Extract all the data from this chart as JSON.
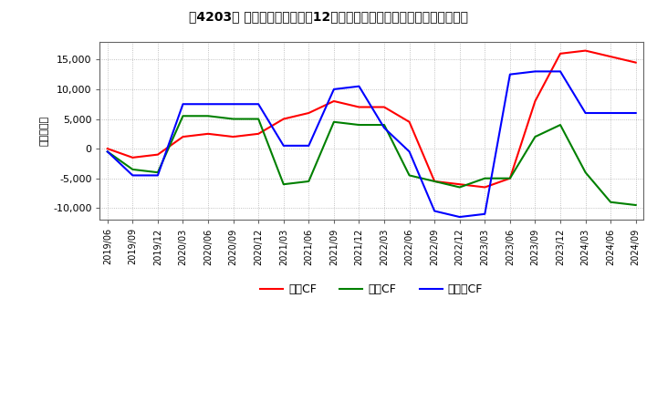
{
  "title": "[䈃] キャッシュフローの12か月移動合計の対前年同期増減額の推移",
  "title2": "［4203］ キャッシュフローの12か月移動合計の対前年同期増減額の推移",
  "ylabel": "（百万円）",
  "ylim": [
    -12000,
    18000
  ],
  "yticks": [
    -10000,
    -5000,
    0,
    5000,
    10000,
    15000
  ],
  "dates": [
    "2019/06",
    "2019/09",
    "2019/12",
    "2020/03",
    "2020/06",
    "2020/09",
    "2020/12",
    "2021/03",
    "2021/06",
    "2021/09",
    "2021/12",
    "2022/03",
    "2022/06",
    "2022/09",
    "2022/12",
    "2023/03",
    "2023/06",
    "2023/09",
    "2023/12",
    "2024/03",
    "2024/06",
    "2024/09"
  ],
  "operating_cf": [
    0,
    -1500,
    -1000,
    2000,
    2500,
    2000,
    2500,
    5000,
    6000,
    8000,
    7000,
    7000,
    4500,
    -5500,
    -6000,
    -6500,
    -5000,
    8000,
    16000,
    16500,
    15500,
    14500
  ],
  "investing_cf": [
    -500,
    -3500,
    -4000,
    5500,
    5500,
    5000,
    5000,
    -6000,
    -5500,
    4500,
    4000,
    4000,
    -4500,
    -5500,
    -6500,
    -5000,
    -5000,
    2000,
    4000,
    -4000,
    -9000,
    -9500
  ],
  "free_cf": [
    -500,
    -4500,
    -4500,
    7500,
    7500,
    7500,
    7500,
    500,
    500,
    10000,
    10500,
    3500,
    -500,
    -10500,
    -11500,
    -11000,
    12500,
    13000,
    13000,
    6000,
    6000,
    6000
  ],
  "op_color": "#ff0000",
  "inv_color": "#008000",
  "free_color": "#0000ff",
  "background_color": "#ffffff",
  "grid_color": "#b0b0b0",
  "legend_labels": [
    "営業CF",
    "投資CF",
    "フリーCF"
  ]
}
